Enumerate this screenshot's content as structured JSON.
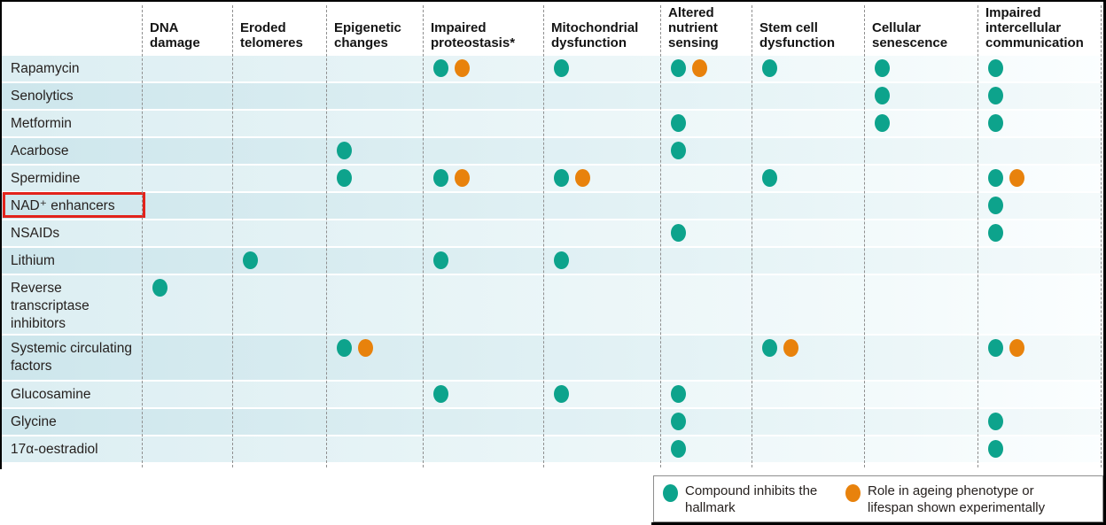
{
  "colors": {
    "teal": "#0da38c",
    "orange": "#e8820c",
    "highlight_red": "#e2231b",
    "row_tint_light": "#dceef2",
    "row_tint_dark": "#cde6ec"
  },
  "legend": {
    "items": [
      {
        "icon": "teal-dot",
        "color": "#0da38c",
        "label": "Compound inhibits the hallmark"
      },
      {
        "icon": "orange-dot",
        "color": "#e8820c",
        "label": "Role in ageing phenotype or lifespan shown experimentally"
      }
    ]
  },
  "chart_data": {
    "type": "table",
    "description": "Dot matrix of compounds (rows) versus hallmarks of ageing (columns). Mark codes: I = teal dot (compound inhibits the hallmark); IE = teal dot plus orange dot (inhibits hallmark and role in ageing phenotype or lifespan shown experimentally).",
    "columns": [
      "DNA damage",
      "Eroded telomeres",
      "Epigenetic changes",
      "Impaired proteostasis*",
      "Mitochondrial dysfunction",
      "Altered nutrient sensing",
      "Stem cell dysfunction",
      "Cellular senescence",
      "Impaired intercellular communication"
    ],
    "mark_key": {
      "I": "Compound inhibits the hallmark",
      "IE": "Compound inhibits the hallmark; role in ageing phenotype or lifespan shown experimentally"
    },
    "rows": [
      {
        "label": "Rapamycin",
        "lines": 1,
        "highlighted": false,
        "marks": [
          null,
          null,
          null,
          "IE",
          "I",
          "IE",
          "I",
          "I",
          "I"
        ]
      },
      {
        "label": "Senolytics",
        "lines": 1,
        "highlighted": false,
        "marks": [
          null,
          null,
          null,
          null,
          null,
          null,
          null,
          "I",
          "I"
        ]
      },
      {
        "label": "Metformin",
        "lines": 1,
        "highlighted": false,
        "marks": [
          null,
          null,
          null,
          null,
          null,
          "I",
          null,
          "I",
          "I"
        ]
      },
      {
        "label": "Acarbose",
        "lines": 1,
        "highlighted": false,
        "marks": [
          null,
          null,
          "I",
          null,
          null,
          "I",
          null,
          null,
          null
        ]
      },
      {
        "label": "Spermidine",
        "lines": 1,
        "highlighted": false,
        "marks": [
          null,
          null,
          "I",
          "IE",
          "IE",
          null,
          "I",
          null,
          "IE"
        ]
      },
      {
        "label": "NAD⁺ enhancers",
        "lines": 1,
        "highlighted": true,
        "marks": [
          null,
          null,
          null,
          null,
          null,
          null,
          null,
          null,
          "I"
        ]
      },
      {
        "label": "NSAIDs",
        "lines": 1,
        "highlighted": false,
        "marks": [
          null,
          null,
          null,
          null,
          null,
          "I",
          null,
          null,
          "I"
        ]
      },
      {
        "label": "Lithium",
        "lines": 1,
        "highlighted": false,
        "marks": [
          null,
          "I",
          null,
          "I",
          "I",
          null,
          null,
          null,
          null
        ]
      },
      {
        "label": "Reverse transcriptase inhibitors",
        "lines": 3,
        "highlighted": false,
        "marks": [
          "I",
          null,
          null,
          null,
          null,
          null,
          null,
          null,
          null
        ]
      },
      {
        "label": "Systemic circulating factors",
        "lines": 2,
        "highlighted": false,
        "marks": [
          null,
          null,
          "IE",
          null,
          null,
          null,
          "IE",
          null,
          "IE"
        ]
      },
      {
        "label": "Glucosamine",
        "lines": 1,
        "highlighted": false,
        "marks": [
          null,
          null,
          null,
          "I",
          "I",
          "I",
          null,
          null,
          null
        ]
      },
      {
        "label": "Glycine",
        "lines": 1,
        "highlighted": false,
        "marks": [
          null,
          null,
          null,
          null,
          null,
          "I",
          null,
          null,
          "I"
        ]
      },
      {
        "label": "17α-oestradiol",
        "lines": 1,
        "highlighted": false,
        "marks": [
          null,
          null,
          null,
          null,
          null,
          "I",
          null,
          null,
          "I"
        ]
      }
    ]
  }
}
